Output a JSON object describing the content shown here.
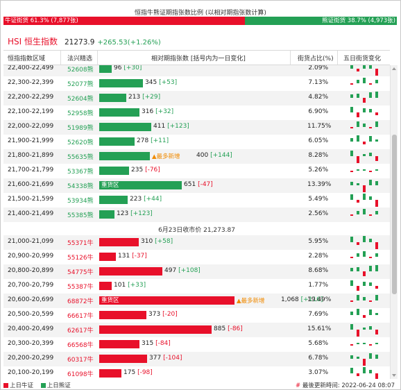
{
  "header": {
    "title": "恒指牛熊证期指张数比例 (以相对期指张数计算)",
    "bull_ratio_label": "牛证街货 61.3% (7,877张)",
    "bear_ratio_label": "熊证街货 38.7% (4,973张)",
    "bull_ratio": 0.613
  },
  "index": {
    "name": "HSI 恒生指数",
    "price": "21273.9",
    "change": "+265.53(+1.26%)"
  },
  "columns": {
    "range": "恒指指数区域",
    "pick": "法兴精选",
    "contracts": "相对期指张数 [括号内为一日变化]",
    "share": "街货占比(%)",
    "five_day": "五日街货变化"
  },
  "labels": {
    "heavy": "重货区",
    "most_new": "▲最多新增"
  },
  "bear_rows": [
    {
      "range": "22,400-22,499",
      "code": "52608熊",
      "value": "96",
      "change": "[+30]",
      "share": "2.09%",
      "n": 96
    },
    {
      "range": "22,300-22,399",
      "code": "52077熊",
      "value": "345",
      "change": "[+53]",
      "share": "7.13%",
      "n": 345
    },
    {
      "range": "22,200-22,299",
      "code": "52604熊",
      "value": "213",
      "change": "[+29]",
      "share": "4.82%",
      "n": 213
    },
    {
      "range": "22,100-22,199",
      "code": "52958熊",
      "value": "316",
      "change": "[+32]",
      "share": "6.90%",
      "n": 316
    },
    {
      "range": "22,000-22,099",
      "code": "51989熊",
      "value": "411",
      "change": "[+123]",
      "share": "11.75%",
      "n": 411
    },
    {
      "range": "21,900-21,999",
      "code": "52620熊",
      "value": "278",
      "change": "[+11]",
      "share": "6.05%",
      "n": 278
    },
    {
      "range": "21,800-21,899",
      "code": "55635熊",
      "value": "400",
      "change": "[+144]",
      "share": "8.28%",
      "n": 400,
      "most": true
    },
    {
      "range": "21,700-21,799",
      "code": "53367熊",
      "value": "235",
      "change": "[-76]",
      "share": "5.26%",
      "n": 235
    },
    {
      "range": "21,600-21,699",
      "code": "54338熊",
      "value": "651",
      "change": "[-47]",
      "share": "13.39%",
      "n": 651,
      "heavy": true
    },
    {
      "range": "21,500-21,599",
      "code": "53934熊",
      "value": "223",
      "change": "[+44]",
      "share": "5.49%",
      "n": 223
    },
    {
      "range": "21,400-21,499",
      "code": "55385熊",
      "value": "123",
      "change": "[+123]",
      "share": "2.56%",
      "n": 123
    }
  ],
  "close_label": "6月23日收市价 21,273.87",
  "bull_rows": [
    {
      "range": "21,000-21,099",
      "code": "55371牛",
      "value": "310",
      "change": "[+58]",
      "share": "5.95%",
      "n": 310
    },
    {
      "range": "20,900-20,999",
      "code": "55126牛",
      "value": "131",
      "change": "[-37]",
      "share": "2.28%",
      "n": 131
    },
    {
      "range": "20,800-20,899",
      "code": "54775牛",
      "value": "497",
      "change": "[+108]",
      "share": "8.68%",
      "n": 497
    },
    {
      "range": "20,700-20,799",
      "code": "55387牛",
      "value": "101",
      "change": "[+33]",
      "share": "1.77%",
      "n": 101
    },
    {
      "range": "20,600-20,699",
      "code": "68872牛",
      "value": "1,068",
      "change": "[+116]",
      "share": "19.49%",
      "n": 1068,
      "heavy": true,
      "most": true
    },
    {
      "range": "20,500-20,599",
      "code": "66617牛",
      "value": "373",
      "change": "[-20]",
      "share": "7.69%",
      "n": 373
    },
    {
      "range": "20,400-20,499",
      "code": "62617牛",
      "value": "885",
      "change": "[-86]",
      "share": "15.61%",
      "n": 885
    },
    {
      "range": "20,300-20,399",
      "code": "66568牛",
      "value": "315",
      "change": "[-84]",
      "share": "5.68%",
      "n": 315
    },
    {
      "range": "20,200-20,299",
      "code": "60317牛",
      "value": "377",
      "change": "[-104]",
      "share": "6.78%",
      "n": 377
    },
    {
      "range": "20,100-20,199",
      "code": "61098牛",
      "value": "175",
      "change": "[-98]",
      "share": "3.07%",
      "n": 175
    }
  ],
  "footer": {
    "legend_bull": "上日牛证",
    "legend_bear": "上日熊证",
    "updated": "最後更新時间: 2022-06-24 08:07",
    "hash": "#"
  },
  "colors": {
    "bull": "#e8102a",
    "bear": "#24a055",
    "most_new": "#f08a00"
  }
}
